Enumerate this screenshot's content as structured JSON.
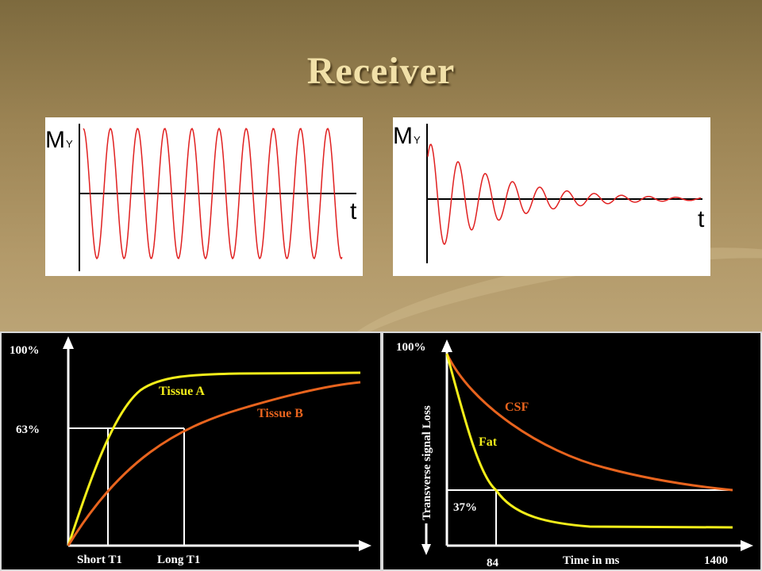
{
  "title": "Receiver",
  "signal_panels": {
    "left": {
      "y_label": "M",
      "y_subscript": "Y",
      "x_label": "t"
    },
    "right": {
      "y_label": "M",
      "y_subscript": "Y",
      "x_label": "t"
    }
  },
  "t1_graph": {
    "y_top": "100%",
    "y_mark": "63%",
    "tick_short": "Short T1",
    "tick_long": "Long T1",
    "curve_a": "Tissue A",
    "curve_b": "Tissue B"
  },
  "t2_graph": {
    "y_top": "100%",
    "y_axis_label": "Transverse signal Loss",
    "y_mark": "37%",
    "curve_csf": "CSF",
    "curve_fat": "Fat",
    "x_tick_84": "84",
    "x_axis_label": "Time in ms",
    "x_tick_1400": "1400"
  },
  "colors": {
    "wave": "#e02020",
    "yellow": "#f4ee1a",
    "orange": "#e8641e"
  }
}
